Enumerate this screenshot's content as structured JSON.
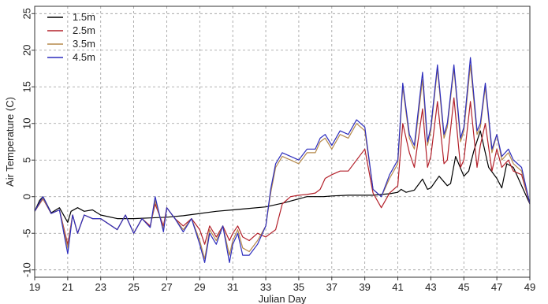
{
  "chart_data": {
    "type": "line",
    "xlabel": "Julian Day",
    "ylabel": "Air Temperature (C)",
    "xlim": [
      19,
      49
    ],
    "ylim": [
      -11,
      26
    ],
    "xticks": [
      19,
      21,
      23,
      25,
      27,
      29,
      31,
      33,
      35,
      37,
      39,
      41,
      43,
      45,
      47,
      49
    ],
    "yticks": [
      -10,
      -5,
      0,
      5,
      10,
      15,
      20,
      25
    ],
    "grid": true,
    "legend_position": "top-left",
    "series": [
      {
        "name": "1.5m",
        "color": "#000000",
        "x": [
          19.0,
          19.3,
          19.5,
          20.0,
          20.5,
          21.0,
          21.2,
          21.6,
          22.0,
          22.5,
          23.0,
          24.0,
          25.0,
          26.0,
          27.0,
          28.0,
          29.0,
          30.0,
          31.0,
          32.0,
          33.0,
          34.0,
          35.0,
          35.5,
          36.0,
          36.5,
          37.0,
          38.0,
          39.0,
          39.5,
          40.0,
          40.5,
          41.0,
          41.2,
          41.5,
          42.0,
          42.5,
          42.8,
          43.0,
          43.5,
          44.0,
          44.2,
          44.5,
          45.0,
          45.3,
          45.6,
          46.0,
          46.5,
          47.0,
          47.3,
          47.6,
          48.0,
          48.5,
          49.0
        ],
        "y": [
          -2.0,
          -0.5,
          0.0,
          -2.2,
          -1.5,
          -3.5,
          -2.0,
          -1.5,
          -2.0,
          -1.8,
          -2.5,
          -3.0,
          -3.0,
          -2.9,
          -2.8,
          -2.6,
          -2.3,
          -2.0,
          -1.8,
          -1.6,
          -1.4,
          -0.9,
          -0.3,
          0.0,
          0.0,
          0.0,
          0.1,
          0.2,
          0.2,
          0.2,
          0.3,
          0.4,
          0.6,
          1.0,
          0.6,
          0.9,
          2.4,
          1.0,
          1.2,
          2.8,
          1.5,
          1.8,
          5.5,
          2.8,
          3.5,
          6.2,
          9.0,
          4.0,
          2.5,
          1.2,
          4.5,
          4.0,
          1.5,
          -1.0
        ]
      },
      {
        "name": "2.5m",
        "color": "#b3202a",
        "x": [
          19.0,
          19.5,
          20.0,
          20.5,
          21.0,
          21.3,
          21.6,
          22.0,
          22.5,
          23.0,
          24.0,
          24.5,
          25.0,
          25.5,
          26.0,
          26.3,
          26.8,
          27.0,
          27.5,
          28.0,
          28.5,
          29.0,
          29.3,
          29.6,
          30.0,
          30.4,
          30.8,
          31.0,
          31.3,
          31.6,
          32.0,
          32.5,
          33.0,
          33.3,
          33.6,
          34.0,
          34.5,
          35.0,
          35.5,
          36.0,
          36.3,
          36.6,
          37.0,
          37.5,
          38.0,
          38.5,
          39.0,
          39.5,
          40.0,
          40.5,
          41.0,
          41.3,
          41.7,
          42.0,
          42.5,
          42.8,
          43.0,
          43.4,
          43.8,
          44.0,
          44.4,
          44.8,
          45.0,
          45.4,
          45.8,
          46.0,
          46.3,
          46.7,
          47.0,
          47.3,
          47.7,
          48.0,
          48.5,
          49.0
        ],
        "y": [
          -2.0,
          -0.3,
          -2.3,
          -1.8,
          -6.5,
          -2.5,
          -5.0,
          -2.5,
          -3.0,
          -3.0,
          -4.5,
          -2.5,
          -5.0,
          -3.0,
          -4.0,
          -1.0,
          -4.0,
          -1.5,
          -3.0,
          -4.0,
          -3.0,
          -4.5,
          -6.5,
          -4.0,
          -5.5,
          -4.0,
          -6.0,
          -5.0,
          -4.0,
          -5.5,
          -6.0,
          -5.0,
          -5.5,
          -5.0,
          -4.5,
          -1.0,
          0.0,
          0.2,
          0.3,
          0.5,
          1.0,
          2.5,
          3.0,
          3.5,
          3.5,
          5.0,
          6.5,
          0.5,
          -1.5,
          0.5,
          1.5,
          10.0,
          6.0,
          4.0,
          12.0,
          4.0,
          5.5,
          13.0,
          4.5,
          5.0,
          13.5,
          4.0,
          5.0,
          13.0,
          4.0,
          7.0,
          10.0,
          3.5,
          6.5,
          4.0,
          5.0,
          3.5,
          3.0,
          -1.0
        ]
      },
      {
        "name": "3.5m",
        "color": "#b58a4c",
        "x": [
          19.0,
          19.5,
          20.0,
          20.5,
          21.0,
          21.3,
          21.6,
          22.0,
          22.5,
          23.0,
          24.0,
          24.5,
          25.0,
          25.5,
          26.0,
          26.3,
          26.8,
          27.0,
          27.5,
          28.0,
          28.5,
          29.0,
          29.3,
          29.6,
          30.0,
          30.4,
          30.8,
          31.0,
          31.3,
          31.6,
          32.0,
          32.5,
          33.0,
          33.3,
          33.6,
          34.0,
          34.5,
          35.0,
          35.5,
          36.0,
          36.3,
          36.6,
          37.0,
          37.5,
          38.0,
          38.5,
          39.0,
          39.5,
          40.0,
          40.5,
          41.0,
          41.3,
          41.7,
          42.0,
          42.5,
          42.8,
          43.0,
          43.4,
          43.8,
          44.0,
          44.4,
          44.8,
          45.0,
          45.4,
          45.8,
          46.0,
          46.3,
          46.7,
          47.0,
          47.3,
          47.7,
          48.0,
          48.5,
          49.0
        ],
        "y": [
          -2.0,
          -0.2,
          -2.3,
          -1.8,
          -7.0,
          -2.5,
          -5.0,
          -2.5,
          -3.0,
          -3.0,
          -4.5,
          -2.5,
          -5.0,
          -3.0,
          -4.2,
          -0.5,
          -4.5,
          -1.5,
          -3.0,
          -4.5,
          -3.0,
          -6.0,
          -8.5,
          -4.5,
          -6.0,
          -4.0,
          -8.0,
          -6.0,
          -4.5,
          -7.0,
          -7.5,
          -6.0,
          -4.0,
          0.5,
          4.0,
          5.5,
          5.0,
          4.5,
          6.0,
          6.0,
          7.5,
          8.0,
          6.5,
          8.5,
          8.0,
          10.0,
          9.0,
          1.0,
          0.0,
          2.5,
          4.5,
          15.0,
          8.0,
          6.5,
          16.0,
          7.0,
          9.0,
          17.5,
          8.0,
          9.5,
          17.5,
          7.5,
          9.0,
          18.0,
          8.5,
          9.5,
          15.0,
          6.0,
          8.5,
          5.0,
          6.0,
          4.5,
          3.5,
          -1.0
        ]
      },
      {
        "name": "4.5m",
        "color": "#2d2dbd",
        "x": [
          19.0,
          19.5,
          20.0,
          20.5,
          21.0,
          21.3,
          21.6,
          22.0,
          22.5,
          23.0,
          24.0,
          24.5,
          25.0,
          25.5,
          26.0,
          26.3,
          26.8,
          27.0,
          27.5,
          28.0,
          28.5,
          29.0,
          29.3,
          29.6,
          30.0,
          30.4,
          30.8,
          31.0,
          31.3,
          31.6,
          32.0,
          32.5,
          33.0,
          33.3,
          33.6,
          34.0,
          34.5,
          35.0,
          35.5,
          36.0,
          36.3,
          36.6,
          37.0,
          37.5,
          38.0,
          38.5,
          39.0,
          39.5,
          40.0,
          40.5,
          41.0,
          41.3,
          41.7,
          42.0,
          42.5,
          42.8,
          43.0,
          43.4,
          43.8,
          44.0,
          44.4,
          44.8,
          45.0,
          45.4,
          45.8,
          46.0,
          46.3,
          46.7,
          47.0,
          47.3,
          47.7,
          48.0,
          48.5,
          49.0
        ],
        "y": [
          -2.0,
          0.0,
          -2.3,
          -1.8,
          -7.8,
          -2.5,
          -5.0,
          -2.5,
          -3.0,
          -3.0,
          -4.5,
          -2.5,
          -5.0,
          -3.0,
          -4.2,
          0.0,
          -4.8,
          -1.5,
          -3.0,
          -4.8,
          -3.0,
          -6.5,
          -9.0,
          -5.0,
          -6.5,
          -4.0,
          -9.0,
          -6.5,
          -5.0,
          -8.0,
          -8.0,
          -6.5,
          -4.0,
          1.0,
          4.5,
          6.0,
          5.5,
          5.0,
          6.5,
          6.5,
          8.0,
          8.5,
          7.0,
          9.0,
          8.5,
          10.5,
          9.5,
          1.0,
          0.0,
          3.0,
          5.0,
          15.5,
          8.5,
          7.0,
          17.0,
          7.5,
          9.5,
          18.0,
          8.5,
          10.0,
          18.0,
          8.0,
          9.5,
          19.0,
          9.0,
          10.0,
          15.5,
          6.5,
          8.5,
          5.5,
          6.5,
          5.0,
          4.0,
          -1.0
        ]
      }
    ]
  }
}
